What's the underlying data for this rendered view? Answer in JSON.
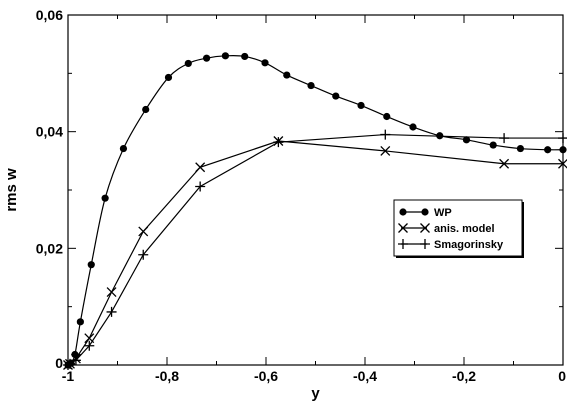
{
  "chart_data": {
    "type": "line",
    "xlabel": "y",
    "ylabel": "rms w",
    "xlim": [
      -1,
      0
    ],
    "ylim": [
      0,
      0.06
    ],
    "x_ticks": [
      -1,
      -0.8,
      -0.6,
      -0.4,
      -0.2,
      0
    ],
    "x_tick_labels": [
      "-1",
      "-0,8",
      "-0,6",
      "-0,4",
      "-0,2",
      "0"
    ],
    "x_minor_ticks": [
      -0.9,
      -0.7,
      -0.5,
      -0.3,
      -0.1
    ],
    "y_ticks": [
      0,
      0.02,
      0.04,
      0.06
    ],
    "y_tick_labels": [
      "0",
      "0,02",
      "0,04",
      "0,06"
    ],
    "y_minor_ticks": [
      0.01,
      0.03,
      0.05
    ],
    "grid": false,
    "legend_position": "center-right",
    "series": [
      {
        "name": "WP",
        "marker": "filled-circle",
        "curve": "smooth",
        "x": [
          -1.0,
          -0.994,
          -0.986,
          -0.975,
          -0.953,
          -0.925,
          -0.888,
          -0.843,
          -0.797,
          -0.757,
          -0.72,
          -0.682,
          -0.643,
          -0.602,
          -0.558,
          -0.509,
          -0.459,
          -0.408,
          -0.356,
          -0.303,
          -0.249,
          -0.195,
          -0.141,
          -0.086,
          -0.031,
          0.0
        ],
        "y": [
          0.0,
          0.0003,
          0.0018,
          0.0074,
          0.0172,
          0.0286,
          0.0371,
          0.0438,
          0.0493,
          0.0517,
          0.0526,
          0.053,
          0.0529,
          0.0518,
          0.0497,
          0.0479,
          0.0461,
          0.0445,
          0.0426,
          0.0408,
          0.0393,
          0.0386,
          0.0377,
          0.0371,
          0.0369,
          0.0369
        ]
      },
      {
        "name": "anis. model",
        "marker": "x",
        "curve": "straight",
        "x": [
          -1.0,
          -0.996,
          -0.984,
          -0.957,
          -0.912,
          -0.848,
          -0.733,
          -0.575,
          -0.359,
          -0.119,
          0.0
        ],
        "y": [
          0.0,
          0.0002,
          0.0011,
          0.0046,
          0.0125,
          0.0229,
          0.0339,
          0.0384,
          0.0367,
          0.0345,
          0.0345
        ]
      },
      {
        "name": "Smagorinsky",
        "marker": "plus",
        "curve": "straight",
        "x": [
          -1.0,
          -0.996,
          -0.984,
          -0.957,
          -0.912,
          -0.848,
          -0.733,
          -0.575,
          -0.359,
          -0.119,
          0.0
        ],
        "y": [
          0.0,
          0.0002,
          0.0008,
          0.0033,
          0.0091,
          0.0189,
          0.0306,
          0.0382,
          0.0395,
          0.0389,
          0.0389
        ]
      }
    ]
  }
}
